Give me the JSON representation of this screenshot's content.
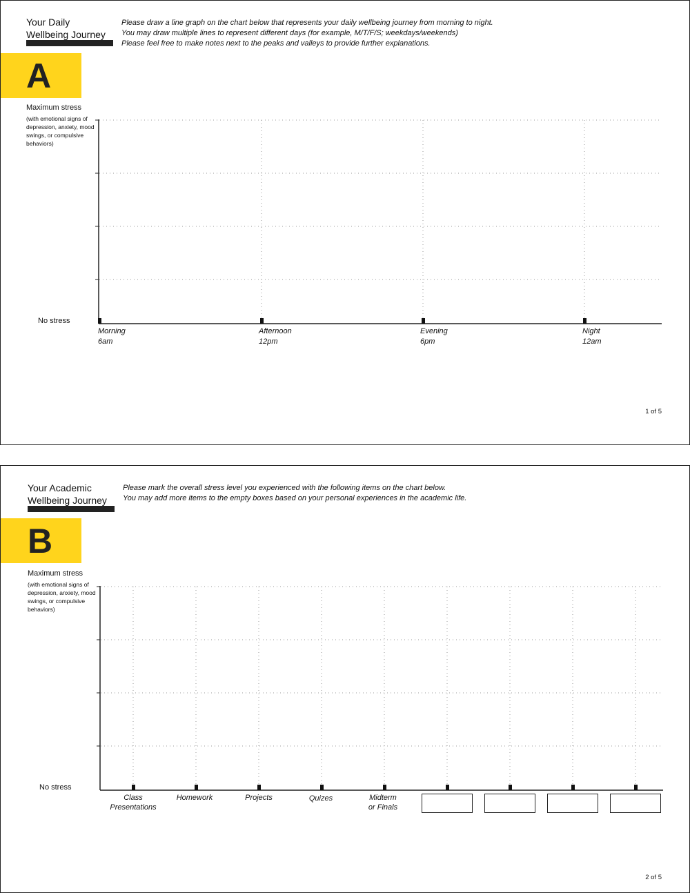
{
  "page_a": {
    "title_line1": "Your Daily",
    "title_line2": "Wellbeing Journey",
    "badge": "A",
    "instructions": [
      "Please draw a line graph on the chart below that represents your daily wellbeing journey from morning to night.",
      "You may draw multiple lines to represent different days (for example, M/T/F/S; weekdays/weekends)",
      "Please feel free to make notes next to the peaks and valleys to provide further explanations."
    ],
    "y_max_label": "Maximum stress",
    "y_max_note": "(with emotional signs of depression, anxiety, mood swings, or compulsive behaviors)",
    "y_min_label": "No stress",
    "x_labels": [
      {
        "line1": "Morning",
        "line2": "6am"
      },
      {
        "line1": "Afternoon",
        "line2": "12pm"
      },
      {
        "line1": "Evening",
        "line2": "6pm"
      },
      {
        "line1": "Night",
        "line2": "12am"
      }
    ],
    "page_number": "1 of 5"
  },
  "page_b": {
    "title_line1": "Your Academic",
    "title_line2": "Wellbeing Journey",
    "badge": "B",
    "instructions": [
      "Please mark the overall stress level you experienced with the following items on the chart below.",
      "You may add more items to the empty boxes based on your personal experiences in the academic life."
    ],
    "y_max_label": "Maximum stress",
    "y_max_note": "(with emotional signs of depression, anxiety, mood swings, or compulsive behaviors)",
    "y_min_label": "No stress",
    "x_labels": [
      {
        "line1": "Class",
        "line2": "Presentations"
      },
      {
        "line1": "Homework",
        "line2": ""
      },
      {
        "line1": "Projects",
        "line2": ""
      },
      {
        "line1": "Quizes",
        "line2": ""
      },
      {
        "line1": "Midterm",
        "line2": "or Finals"
      }
    ],
    "blank_box_count": 4,
    "page_number": "2 of 5"
  }
}
